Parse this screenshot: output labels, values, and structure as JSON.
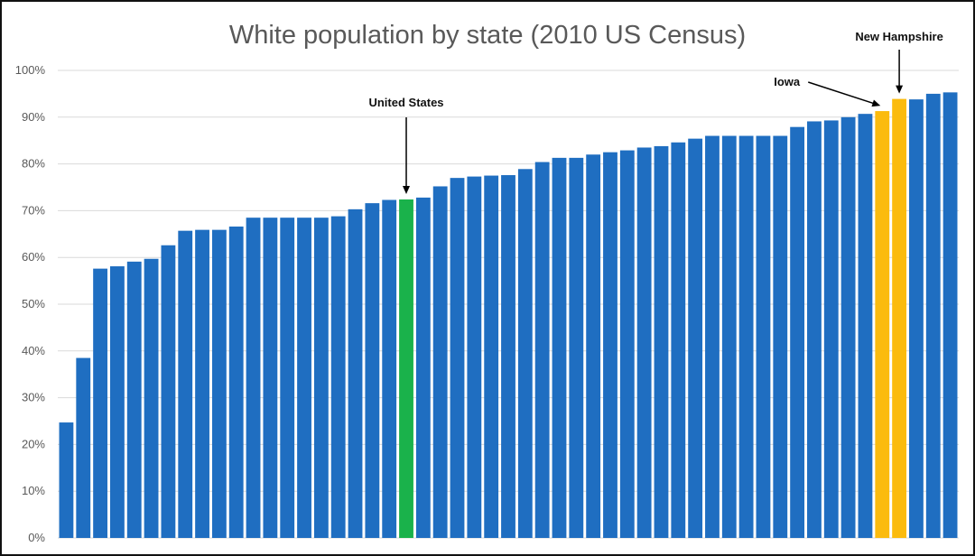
{
  "chart_data": {
    "type": "bar",
    "title": "White population by state (2010 US Census)",
    "xlabel": "",
    "ylabel": "",
    "ylim": [
      0,
      100
    ],
    "yticks": [
      "0%",
      "10%",
      "20%",
      "30%",
      "40%",
      "50%",
      "60%",
      "70%",
      "80%",
      "90%",
      "100%"
    ],
    "grid": true,
    "legend": "none",
    "colors": {
      "default": "#1f6ec1",
      "highlight_us": "#1ab24b",
      "highlight_states": "#fbbb0e",
      "gridline": "#d9d9d9"
    },
    "values": [
      24.7,
      38.5,
      57.6,
      58.1,
      59.1,
      59.7,
      62.6,
      65.7,
      65.9,
      65.9,
      66.6,
      68.5,
      68.5,
      68.5,
      68.5,
      68.5,
      68.8,
      70.3,
      71.6,
      72.3,
      72.4,
      72.8,
      75.2,
      77.0,
      77.3,
      77.5,
      77.6,
      78.9,
      80.4,
      81.3,
      81.3,
      82.0,
      82.5,
      82.9,
      83.5,
      83.8,
      84.6,
      85.4,
      86.0,
      86.0,
      86.0,
      86.0,
      86.0,
      87.9,
      89.1,
      89.3,
      90.0,
      90.7,
      91.3,
      93.9,
      93.8,
      95.0,
      95.3
    ],
    "highlights": [
      {
        "index": 20,
        "color_key": "highlight_us"
      },
      {
        "index": 48,
        "color_key": "highlight_states"
      },
      {
        "index": 49,
        "color_key": "highlight_states"
      }
    ],
    "annotations": [
      {
        "label": "United States",
        "index": 20
      },
      {
        "label": "Iowa",
        "index": 48
      },
      {
        "label": "New Hampshire",
        "index": 49
      }
    ]
  }
}
